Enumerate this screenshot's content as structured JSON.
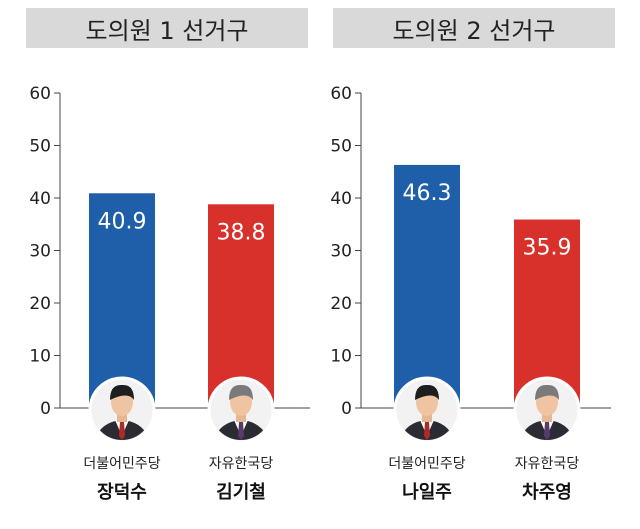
{
  "chart_data": [
    {
      "type": "bar",
      "title": "도의원 1 선거구",
      "ylim": [
        0,
        60
      ],
      "yticks": [
        0,
        10,
        20,
        30,
        40,
        50,
        60
      ],
      "bars": [
        {
          "party": "더불어민주당",
          "candidate": "장덕수",
          "value": 40.9,
          "color": "#1f5fa9",
          "label": "40.9"
        },
        {
          "party": "자유한국당",
          "candidate": "김기철",
          "value": 38.8,
          "color": "#d8312c",
          "label": "38.8"
        }
      ]
    },
    {
      "type": "bar",
      "title": "도의원 2 선거구",
      "ylim": [
        0,
        60
      ],
      "yticks": [
        0,
        10,
        20,
        30,
        40,
        50,
        60
      ],
      "bars": [
        {
          "party": "더불어민주당",
          "candidate": "나일주",
          "value": 46.3,
          "color": "#1f5fa9",
          "label": "46.3"
        },
        {
          "party": "자유한국당",
          "candidate": "차주영",
          "value": 35.9,
          "color": "#d8312c",
          "label": "35.9"
        }
      ]
    }
  ]
}
